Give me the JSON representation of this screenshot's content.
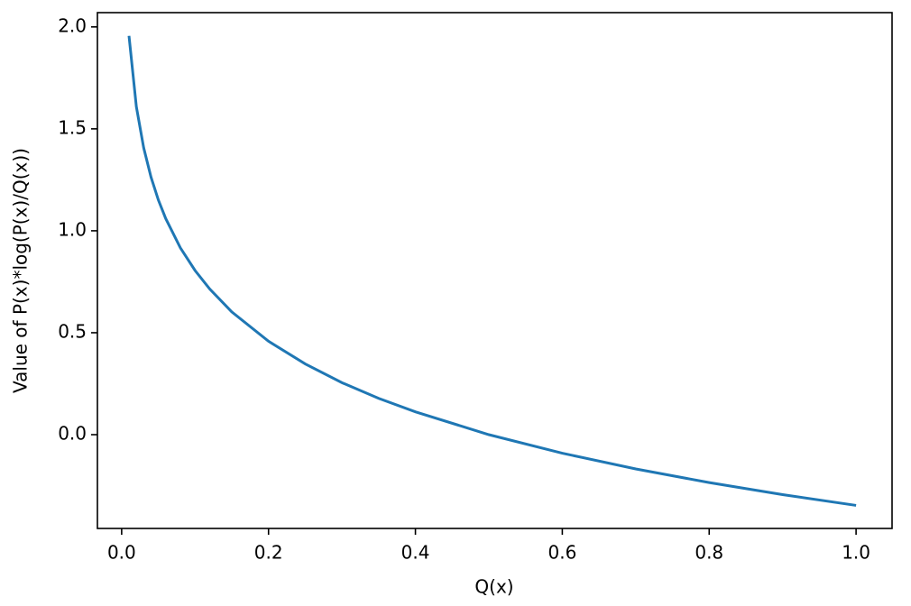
{
  "chart_data": {
    "type": "line",
    "xlabel": "Q(x)",
    "ylabel": "Value of P(x)*log(P(x)/Q(x))",
    "x": [
      0.01,
      0.02,
      0.03,
      0.04,
      0.05,
      0.06,
      0.08,
      0.1,
      0.12,
      0.15,
      0.2,
      0.25,
      0.3,
      0.35,
      0.4,
      0.5,
      0.6,
      0.7,
      0.8,
      0.9,
      1.0
    ],
    "series": [
      {
        "color": "#1f77b4",
        "values": [
          1.956,
          1.609,
          1.407,
          1.263,
          1.151,
          1.06,
          0.916,
          0.805,
          0.714,
          0.602,
          0.458,
          0.347,
          0.255,
          0.178,
          0.112,
          0.0,
          -0.091,
          -0.168,
          -0.235,
          -0.294,
          -0.347
        ]
      }
    ],
    "xlim": [
      -0.033,
      1.049
    ],
    "ylim": [
      -0.46,
      2.07
    ],
    "xticks": [
      {
        "value": 0,
        "label": "0.0"
      },
      0.2,
      0.4,
      0.6,
      0.8,
      {
        "value": 1,
        "label": "1.0"
      }
    ],
    "yticks": [
      {
        "value": 0,
        "label": "0.0"
      },
      0.5,
      {
        "value": 1,
        "label": "1.0"
      },
      1.5,
      {
        "value": 2,
        "label": "2.0"
      }
    ],
    "grid": false
  }
}
